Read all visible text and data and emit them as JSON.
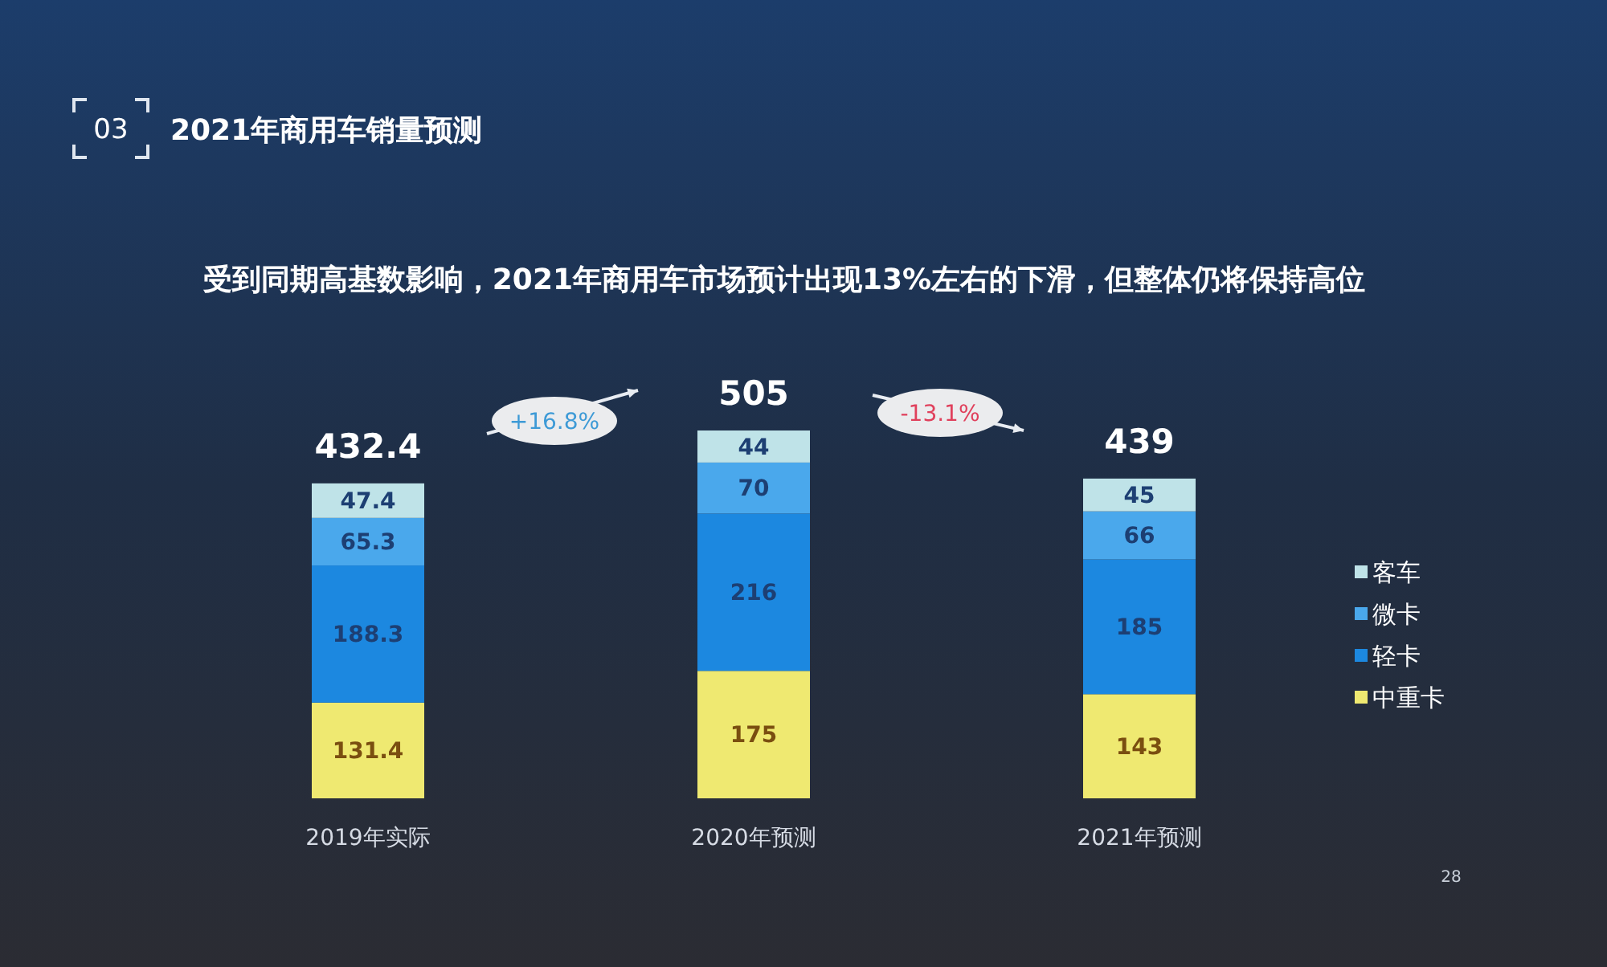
{
  "chart_data": {
    "type": "bar",
    "title": "2021年商用车销量预测",
    "subtitle": "受到同期高基数影响，2021年商用车市场预计出现13%左右的下滑，但整体仍将保持高位",
    "categories": [
      "2019年实际",
      "2020年预测",
      "2021年预测"
    ],
    "stacked": true,
    "series": [
      {
        "name": "中重卡",
        "color": "#efe971",
        "values": [
          131.4,
          175,
          143
        ]
      },
      {
        "name": "轻卡",
        "color": "#1c88e0",
        "values": [
          188.3,
          216,
          185
        ]
      },
      {
        "name": "微卡",
        "color": "#4aa8ec",
        "values": [
          65.3,
          70,
          66
        ]
      },
      {
        "name": "客车",
        "color": "#bfe3e8",
        "values": [
          47.4,
          44,
          45
        ]
      }
    ],
    "data_labels": true,
    "totals": [
      "432.4",
      "505",
      "439"
    ],
    "legend": "right",
    "tick_labels": "x",
    "annotations": [
      "03",
      "+16.8%",
      "-13.1%",
      "28"
    ]
  }
}
